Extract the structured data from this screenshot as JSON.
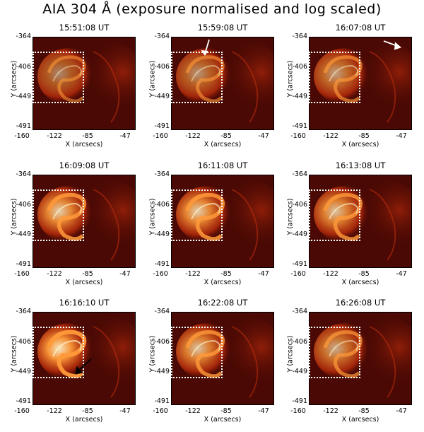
{
  "title": "AIA 304 Å (exposure normalised and log scaled)",
  "axes": {
    "xlabel": "X (arcsecs)",
    "ylabel": "Y (arcsecs)",
    "xticks": [
      "-160",
      "-122",
      "-85",
      "-47"
    ],
    "yticks": [
      "-364",
      "-406",
      "-449",
      "-491"
    ]
  },
  "panels": [
    {
      "time": "15:51:08 UT",
      "arrow": "none"
    },
    {
      "time": "15:59:08 UT",
      "arrow": "white-down"
    },
    {
      "time": "16:07:08 UT",
      "arrow": "white-right"
    },
    {
      "time": "16:09:08 UT",
      "arrow": "none"
    },
    {
      "time": "16:11:08 UT",
      "arrow": "none"
    },
    {
      "time": "16:13:08 UT",
      "arrow": "none"
    },
    {
      "time": "16:16:10 UT",
      "arrow": "black-left"
    },
    {
      "time": "16:22:08 UT",
      "arrow": "none"
    },
    {
      "time": "16:26:08 UT",
      "arrow": "none"
    }
  ],
  "colors": {
    "background": "#4a0904",
    "emission_mid": "#c8300c",
    "emission_bright": "#ff9a3a",
    "emission_peak": "#fff0c8",
    "box": "#ffffff"
  }
}
